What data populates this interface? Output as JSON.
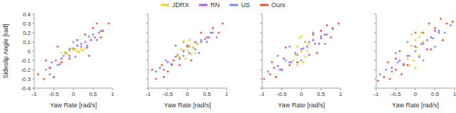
{
  "chart_data": [
    {
      "type": "scatter",
      "x_label": "Yaw Rate [rad/s]",
      "y_label": "Sideslip Angle [rad]",
      "legend": "top",
      "xlim": [
        -1,
        1
      ],
      "ylim": [
        -0.4,
        0.4
      ],
      "xticks": [
        -1,
        -0.5,
        0,
        0.5,
        1
      ],
      "yticks": [
        -0.4,
        -0.3,
        -0.2,
        -0.1,
        0,
        0.1,
        0.2,
        0.3,
        0.4
      ],
      "series": [
        {
          "name": "JDRX",
          "color": "#f2d21b",
          "x": [
            -0.3,
            -0.2,
            -0.1,
            0,
            0.1,
            0.2,
            0.3,
            -0.15,
            0.05,
            0.15,
            -0.05,
            0.25
          ],
          "values": [
            -0.02,
            -0.01,
            0.0,
            0.01,
            0.0,
            0.02,
            0.03,
            -0.03,
            0.02,
            -0.01,
            0.03,
            0.01
          ]
        },
        {
          "name": "RN",
          "color": "#b05cd9",
          "x": [
            -0.6,
            -0.45,
            -0.3,
            -0.2,
            -0.1,
            0,
            0.1,
            0.2,
            0.3,
            0.45,
            0.55,
            0.65,
            -0.35,
            0.35
          ],
          "values": [
            -0.18,
            -0.1,
            -0.08,
            -0.02,
            -0.05,
            0.03,
            0.06,
            0.05,
            0.1,
            0.12,
            0.15,
            0.2,
            -0.14,
            0.04
          ]
        },
        {
          "name": "US",
          "color": "#6f8fe8",
          "x": [
            -0.7,
            -0.55,
            -0.4,
            -0.25,
            -0.1,
            0.05,
            0.2,
            0.35,
            0.5,
            0.6,
            0.7,
            -0.6,
            0.4,
            0.0
          ],
          "values": [
            -0.2,
            -0.12,
            -0.15,
            -0.05,
            0.02,
            -0.06,
            0.08,
            0.06,
            0.18,
            0.12,
            0.22,
            -0.25,
            0.16,
            0.1
          ]
        },
        {
          "name": "Ours",
          "color": "#f0502a",
          "x": [
            -0.9,
            -0.75,
            -0.6,
            -0.5,
            -0.3,
            -0.1,
            0.1,
            0.3,
            0.5,
            0.6,
            0.75,
            0.9,
            -0.4,
            0.4,
            -0.7,
            0.7
          ],
          "values": [
            -0.25,
            -0.3,
            -0.18,
            -0.28,
            -0.12,
            -0.08,
            0.12,
            0.18,
            0.25,
            0.3,
            0.22,
            0.3,
            0.05,
            -0.05,
            -0.1,
            0.15
          ]
        }
      ]
    },
    {
      "type": "scatter",
      "x_label": "Yaw Rate [rad/s]",
      "tick_labels": "x",
      "xlim": [
        -1,
        1
      ],
      "ylim": [
        -0.4,
        0.4
      ],
      "xticks": [
        -1,
        -0.5,
        0,
        0.5,
        1
      ],
      "yticks": [
        -0.4,
        -0.3,
        -0.2,
        -0.1,
        0,
        0.1,
        0.2,
        0.3,
        0.4
      ],
      "series": [
        {
          "name": "JDRX",
          "color": "#f2d21b",
          "x": [
            -0.25,
            -0.15,
            -0.05,
            0.05,
            0.15,
            0.25,
            -0.1,
            0.1,
            0,
            0.2,
            -0.2,
            0.05
          ],
          "values": [
            -0.05,
            0.02,
            -0.08,
            0.06,
            0.04,
            0.08,
            0.1,
            -0.03,
            0.01,
            -0.02,
            -0.06,
            0.12
          ]
        },
        {
          "name": "RN",
          "color": "#b05cd9",
          "x": [
            -0.5,
            -0.4,
            -0.3,
            -0.2,
            -0.1,
            0.05,
            0.15,
            0.25,
            0.35,
            0.45,
            0.55,
            -0.6,
            0.6,
            0
          ],
          "values": [
            -0.12,
            -0.15,
            -0.06,
            -0.08,
            0.0,
            -0.02,
            0.04,
            0.08,
            0.1,
            0.13,
            0.15,
            -0.2,
            0.2,
            0.06
          ]
        },
        {
          "name": "US",
          "color": "#6f8fe8",
          "x": [
            -0.7,
            -0.55,
            -0.4,
            -0.25,
            -0.1,
            0.05,
            0.2,
            0.35,
            0.5,
            0.65,
            0.75,
            -0.8,
            0.3,
            -0.3
          ],
          "values": [
            -0.18,
            -0.1,
            -0.14,
            -0.04,
            -0.05,
            0.05,
            0.02,
            0.12,
            0.1,
            0.2,
            0.15,
            -0.22,
            -0.02,
            0.06
          ]
        },
        {
          "name": "Ours",
          "color": "#f0502a",
          "x": [
            -0.9,
            -0.8,
            -0.65,
            -0.5,
            -0.35,
            -0.2,
            0.0,
            0.2,
            0.35,
            0.5,
            0.65,
            0.8,
            0.9,
            -0.1,
            0.1,
            -0.6
          ],
          "values": [
            -0.2,
            -0.3,
            -0.15,
            -0.22,
            -0.1,
            -0.15,
            0.05,
            0.1,
            0.2,
            0.15,
            0.25,
            0.2,
            0.3,
            0.1,
            -0.1,
            -0.28
          ]
        }
      ]
    },
    {
      "type": "scatter",
      "x_label": "Yaw Rate [rad/s]",
      "tick_labels": "x",
      "xlim": [
        -1,
        1
      ],
      "ylim": [
        -0.4,
        0.4
      ],
      "xticks": [
        -1,
        -0.5,
        0,
        0.5,
        1
      ],
      "yticks": [
        -0.4,
        -0.3,
        -0.2,
        -0.1,
        0,
        0.1,
        0.2,
        0.3,
        0.4
      ],
      "series": [
        {
          "name": "JDRX",
          "color": "#f2d21b",
          "x": [
            -0.2,
            -0.1,
            0,
            0.1,
            0.2,
            -0.15,
            0.05,
            0.15,
            -0.05,
            0.1,
            -0.1,
            0
          ],
          "values": [
            -0.1,
            0.05,
            0.0,
            0.1,
            0.08,
            -0.04,
            -0.12,
            0.0,
            0.14,
            -0.06,
            -0.15,
            0.16
          ]
        },
        {
          "name": "RN",
          "color": "#b05cd9",
          "x": [
            -0.6,
            -0.45,
            -0.3,
            -0.15,
            0,
            0.15,
            0.3,
            0.45,
            0.6,
            -0.5,
            0.5,
            0.2
          ],
          "values": [
            -0.16,
            -0.08,
            -0.12,
            -0.02,
            0.02,
            0.05,
            0.12,
            0.08,
            0.18,
            -0.2,
            0.14,
            -0.04
          ]
        },
        {
          "name": "US",
          "color": "#6f8fe8",
          "x": [
            -0.85,
            -0.7,
            -0.55,
            -0.4,
            -0.25,
            -0.1,
            0.05,
            0.2,
            0.35,
            0.5,
            0.65,
            0.8,
            -0.6,
            0.6,
            -0.3,
            0.3,
            0.0
          ],
          "values": [
            -0.22,
            -0.18,
            -0.2,
            -0.1,
            -0.12,
            -0.04,
            0.03,
            0.1,
            0.08,
            0.16,
            0.18,
            0.24,
            -0.05,
            0.08,
            0.05,
            0.2,
            -0.1
          ]
        },
        {
          "name": "Ours",
          "color": "#f0502a",
          "x": [
            -0.95,
            -0.8,
            -0.65,
            -0.5,
            -0.3,
            -0.1,
            0.1,
            0.3,
            0.5,
            0.65,
            0.8,
            0.95,
            -0.4,
            0.4,
            -0.75,
            0.75
          ],
          "values": [
            -0.3,
            -0.25,
            -0.28,
            -0.2,
            -0.15,
            -0.12,
            0.1,
            0.18,
            0.22,
            0.28,
            0.25,
            0.3,
            0.04,
            -0.02,
            -0.12,
            0.15
          ]
        }
      ]
    },
    {
      "type": "scatter",
      "x_label": "Yaw Rate [rad/s]",
      "tick_labels": "x",
      "xlim": [
        -1,
        1
      ],
      "ylim": [
        -0.4,
        0.4
      ],
      "xticks": [
        -1,
        -0.5,
        0,
        0.5,
        1
      ],
      "yticks": [
        -0.4,
        -0.3,
        -0.2,
        -0.1,
        0,
        0.1,
        0.2,
        0.3,
        0.4
      ],
      "series": [
        {
          "name": "JDRX",
          "color": "#f2d21b",
          "x": [
            -0.2,
            -0.1,
            0,
            0.1,
            0.2,
            -0.05,
            0.05,
            0.15,
            -0.15,
            0.1,
            0,
            -0.1
          ],
          "values": [
            -0.08,
            0.06,
            0.12,
            0.15,
            0.1,
            -0.1,
            0.04,
            0.2,
            -0.15,
            -0.04,
            -0.18,
            0.18
          ]
        },
        {
          "name": "RN",
          "color": "#b05cd9",
          "x": [
            -0.6,
            -0.4,
            -0.2,
            0,
            0.2,
            0.4,
            0.6,
            -0.3,
            0.3,
            0.5,
            -0.5,
            0.1
          ],
          "values": [
            -0.18,
            -0.1,
            -0.05,
            0.05,
            0.08,
            0.15,
            0.2,
            -0.14,
            0.02,
            0.22,
            -0.08,
            -0.06
          ]
        },
        {
          "name": "US",
          "color": "#6f8fe8",
          "x": [
            -0.9,
            -0.75,
            -0.6,
            -0.45,
            -0.3,
            -0.15,
            0,
            0.15,
            0.3,
            0.45,
            0.6,
            0.75,
            0.9,
            -0.5,
            0.5,
            -0.2,
            0.2
          ],
          "values": [
            -0.25,
            -0.2,
            -0.22,
            -0.12,
            -0.15,
            -0.05,
            0.0,
            0.08,
            0.12,
            0.14,
            0.22,
            0.2,
            0.28,
            -0.02,
            0.05,
            0.1,
            -0.1
          ]
        },
        {
          "name": "Ours",
          "color": "#f0502a",
          "x": [
            -0.95,
            -0.8,
            -0.65,
            -0.5,
            -0.35,
            -0.2,
            0,
            0.2,
            0.35,
            0.5,
            0.65,
            0.8,
            0.95,
            -0.7,
            0.7,
            -0.4,
            0.4
          ],
          "values": [
            -0.32,
            -0.28,
            -0.3,
            -0.2,
            -0.25,
            -0.15,
            0.2,
            0.2,
            0.3,
            0.25,
            0.35,
            0.3,
            0.32,
            -0.12,
            0.12,
            0.0,
            0.02
          ]
        }
      ]
    }
  ]
}
